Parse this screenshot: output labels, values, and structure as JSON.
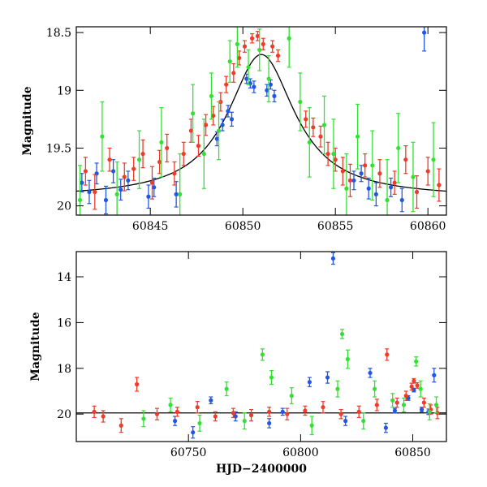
{
  "chart_data": [
    {
      "type": "scatter",
      "panel": "top",
      "title": "",
      "xlabel": "",
      "ylabel": "Magnitude",
      "xlim": [
        60841,
        60861
      ],
      "ylim": [
        20.08,
        18.45
      ],
      "y_inverted": true,
      "x_ticks": [
        60845,
        60850,
        60855,
        60860
      ],
      "x_tick_labels": [
        "60845",
        "60850",
        "60855",
        "60860"
      ],
      "y_ticks": [
        18.5,
        19,
        19.5,
        20
      ],
      "y_tick_labels": [
        "18.5",
        "19",
        "19.5",
        "20"
      ],
      "grid": false,
      "legend": "none",
      "model_curve": {
        "color": "#000000",
        "baseline": 19.93,
        "peak_mag": 18.69,
        "peak_time": 60851.0,
        "width_days": 2.2
      },
      "series": [
        {
          "color": "#2257e6",
          "points": [
            {
              "x": 60841.3,
              "y": 19.8,
              "err": 0.08
            },
            {
              "x": 60841.7,
              "y": 19.88,
              "err": 0.1
            },
            {
              "x": 60842.1,
              "y": 19.72,
              "err": 0.09
            },
            {
              "x": 60842.6,
              "y": 19.95,
              "err": 0.12
            },
            {
              "x": 60843.0,
              "y": 19.7,
              "err": 0.1
            },
            {
              "x": 60843.4,
              "y": 19.86,
              "err": 0.09
            },
            {
              "x": 60843.8,
              "y": 19.78,
              "err": 0.08
            },
            {
              "x": 60844.9,
              "y": 19.92,
              "err": 0.1
            },
            {
              "x": 60845.2,
              "y": 19.84,
              "err": 0.08
            },
            {
              "x": 60846.4,
              "y": 19.9,
              "err": 0.11
            },
            {
              "x": 60848.6,
              "y": 19.42,
              "err": 0.06
            },
            {
              "x": 60848.9,
              "y": 19.3,
              "err": 0.05
            },
            {
              "x": 60849.2,
              "y": 19.18,
              "err": 0.05
            },
            {
              "x": 60849.4,
              "y": 19.25,
              "err": 0.06
            },
            {
              "x": 60850.2,
              "y": 18.9,
              "err": 0.04
            },
            {
              "x": 60850.4,
              "y": 18.94,
              "err": 0.04
            },
            {
              "x": 60850.6,
              "y": 18.97,
              "err": 0.05
            },
            {
              "x": 60851.3,
              "y": 19.0,
              "err": 0.05
            },
            {
              "x": 60851.5,
              "y": 18.95,
              "err": 0.04
            },
            {
              "x": 60851.7,
              "y": 19.05,
              "err": 0.05
            },
            {
              "x": 60856.0,
              "y": 19.78,
              "err": 0.08
            },
            {
              "x": 60856.4,
              "y": 19.72,
              "err": 0.07
            },
            {
              "x": 60856.8,
              "y": 19.85,
              "err": 0.09
            },
            {
              "x": 60857.2,
              "y": 19.9,
              "err": 0.1
            },
            {
              "x": 60858.0,
              "y": 19.84,
              "err": 0.08
            },
            {
              "x": 60858.6,
              "y": 19.95,
              "err": 0.1
            },
            {
              "x": 60859.8,
              "y": 18.5,
              "err": 0.16
            }
          ]
        },
        {
          "color": "#ee3b2a",
          "points": [
            {
              "x": 60841.5,
              "y": 19.7,
              "err": 0.12
            },
            {
              "x": 60842.0,
              "y": 19.88,
              "err": 0.15
            },
            {
              "x": 60842.8,
              "y": 19.6,
              "err": 0.1
            },
            {
              "x": 60843.6,
              "y": 19.75,
              "err": 0.12
            },
            {
              "x": 60844.1,
              "y": 19.68,
              "err": 0.1
            },
            {
              "x": 60844.6,
              "y": 19.55,
              "err": 0.12
            },
            {
              "x": 60845.1,
              "y": 19.8,
              "err": 0.14
            },
            {
              "x": 60845.5,
              "y": 19.62,
              "err": 0.1
            },
            {
              "x": 60845.9,
              "y": 19.5,
              "err": 0.12
            },
            {
              "x": 60846.3,
              "y": 19.72,
              "err": 0.1
            },
            {
              "x": 60846.8,
              "y": 19.55,
              "err": 0.1
            },
            {
              "x": 60847.2,
              "y": 19.35,
              "err": 0.1
            },
            {
              "x": 60847.6,
              "y": 19.48,
              "err": 0.09
            },
            {
              "x": 60848.0,
              "y": 19.3,
              "err": 0.09
            },
            {
              "x": 60848.4,
              "y": 19.22,
              "err": 0.08
            },
            {
              "x": 60848.8,
              "y": 19.1,
              "err": 0.08
            },
            {
              "x": 60849.1,
              "y": 18.95,
              "err": 0.07
            },
            {
              "x": 60849.5,
              "y": 18.85,
              "err": 0.08
            },
            {
              "x": 60849.8,
              "y": 18.72,
              "err": 0.06
            },
            {
              "x": 60850.1,
              "y": 18.62,
              "err": 0.05
            },
            {
              "x": 60850.5,
              "y": 18.55,
              "err": 0.04
            },
            {
              "x": 60850.8,
              "y": 18.53,
              "err": 0.04
            },
            {
              "x": 60851.1,
              "y": 18.6,
              "err": 0.05
            },
            {
              "x": 60851.6,
              "y": 18.62,
              "err": 0.05
            },
            {
              "x": 60851.9,
              "y": 18.7,
              "err": 0.05
            },
            {
              "x": 60853.4,
              "y": 19.25,
              "err": 0.07
            },
            {
              "x": 60853.8,
              "y": 19.32,
              "err": 0.08
            },
            {
              "x": 60854.2,
              "y": 19.4,
              "err": 0.09
            },
            {
              "x": 60854.6,
              "y": 19.55,
              "err": 0.1
            },
            {
              "x": 60855.0,
              "y": 19.6,
              "err": 0.1
            },
            {
              "x": 60855.4,
              "y": 19.7,
              "err": 0.12
            },
            {
              "x": 60855.8,
              "y": 19.78,
              "err": 0.14
            },
            {
              "x": 60856.6,
              "y": 19.65,
              "err": 0.1
            },
            {
              "x": 60857.4,
              "y": 19.72,
              "err": 0.12
            },
            {
              "x": 60858.2,
              "y": 19.8,
              "err": 0.1
            },
            {
              "x": 60858.8,
              "y": 19.6,
              "err": 0.12
            },
            {
              "x": 60859.4,
              "y": 19.88,
              "err": 0.14
            },
            {
              "x": 60860.0,
              "y": 19.7,
              "err": 0.12
            },
            {
              "x": 60860.6,
              "y": 19.82,
              "err": 0.14
            }
          ]
        },
        {
          "color": "#33e033",
          "points": [
            {
              "x": 60841.2,
              "y": 19.95,
              "err": 0.3
            },
            {
              "x": 60842.4,
              "y": 19.4,
              "err": 0.3
            },
            {
              "x": 60843.2,
              "y": 19.9,
              "err": 0.28
            },
            {
              "x": 60844.4,
              "y": 19.6,
              "err": 0.25
            },
            {
              "x": 60845.6,
              "y": 19.45,
              "err": 0.3
            },
            {
              "x": 60846.6,
              "y": 19.9,
              "err": 0.35
            },
            {
              "x": 60847.3,
              "y": 19.2,
              "err": 0.25
            },
            {
              "x": 60847.9,
              "y": 19.55,
              "err": 0.3
            },
            {
              "x": 60848.3,
              "y": 19.05,
              "err": 0.2
            },
            {
              "x": 60848.7,
              "y": 19.35,
              "err": 0.25
            },
            {
              "x": 60849.3,
              "y": 18.75,
              "err": 0.18
            },
            {
              "x": 60849.7,
              "y": 18.6,
              "err": 0.2
            },
            {
              "x": 60850.3,
              "y": 18.8,
              "err": 0.15
            },
            {
              "x": 60850.9,
              "y": 18.65,
              "err": 0.18
            },
            {
              "x": 60851.4,
              "y": 18.9,
              "err": 0.2
            },
            {
              "x": 60852.5,
              "y": 18.55,
              "err": 0.25
            },
            {
              "x": 60853.1,
              "y": 19.1,
              "err": 0.25
            },
            {
              "x": 60853.6,
              "y": 19.45,
              "err": 0.3
            },
            {
              "x": 60854.4,
              "y": 19.3,
              "err": 0.25
            },
            {
              "x": 60854.9,
              "y": 19.55,
              "err": 0.3
            },
            {
              "x": 60855.6,
              "y": 19.85,
              "err": 0.3
            },
            {
              "x": 60856.2,
              "y": 19.4,
              "err": 0.28
            },
            {
              "x": 60857.0,
              "y": 19.65,
              "err": 0.3
            },
            {
              "x": 60857.8,
              "y": 19.95,
              "err": 0.35
            },
            {
              "x": 60858.4,
              "y": 19.5,
              "err": 0.3
            },
            {
              "x": 60859.2,
              "y": 19.75,
              "err": 0.3
            },
            {
              "x": 60860.3,
              "y": 19.6,
              "err": 0.32
            }
          ]
        }
      ]
    },
    {
      "type": "scatter",
      "panel": "bottom",
      "title": "",
      "xlabel": "HJD−2400000",
      "ylabel": "Magnitude",
      "xlim": [
        60700,
        60865
      ],
      "ylim": [
        21.2,
        12.9
      ],
      "y_inverted": true,
      "x_ticks": [
        60750,
        60800,
        60850
      ],
      "x_tick_labels": [
        "60750",
        "60800",
        "60850"
      ],
      "y_ticks": [
        14,
        16,
        18,
        20
      ],
      "y_tick_labels": [
        "14",
        "16",
        "18",
        "20"
      ],
      "grid": false,
      "legend": "none",
      "baseline_line": {
        "color": "#000000",
        "y": 19.95
      },
      "series": [
        {
          "color": "#2257e6",
          "points": [
            {
              "x": 60744.0,
              "y": 20.3,
              "err": 0.2
            },
            {
              "x": 60752.0,
              "y": 20.8,
              "err": 0.25
            },
            {
              "x": 60760.0,
              "y": 19.4,
              "err": 0.15
            },
            {
              "x": 60771.0,
              "y": 20.1,
              "err": 0.2
            },
            {
              "x": 60786.0,
              "y": 20.4,
              "err": 0.2
            },
            {
              "x": 60792.0,
              "y": 19.9,
              "err": 0.15
            },
            {
              "x": 60804.0,
              "y": 18.6,
              "err": 0.2
            },
            {
              "x": 60812.0,
              "y": 18.4,
              "err": 0.25
            },
            {
              "x": 60814.5,
              "y": 13.2,
              "err": 0.25
            },
            {
              "x": 60820.0,
              "y": 20.3,
              "err": 0.2
            },
            {
              "x": 60831.0,
              "y": 18.2,
              "err": 0.2
            },
            {
              "x": 60838.0,
              "y": 20.6,
              "err": 0.2
            },
            {
              "x": 60842.0,
              "y": 19.85,
              "err": 0.1
            },
            {
              "x": 60848.0,
              "y": 19.3,
              "err": 0.1
            },
            {
              "x": 60850.5,
              "y": 18.95,
              "err": 0.08
            },
            {
              "x": 60854.0,
              "y": 19.8,
              "err": 0.1
            },
            {
              "x": 60857.0,
              "y": 19.9,
              "err": 0.12
            },
            {
              "x": 60859.5,
              "y": 18.3,
              "err": 0.3
            }
          ]
        },
        {
          "color": "#ee3b2a",
          "points": [
            {
              "x": 60708.0,
              "y": 19.9,
              "err": 0.25
            },
            {
              "x": 60712.0,
              "y": 20.1,
              "err": 0.25
            },
            {
              "x": 60720.0,
              "y": 20.5,
              "err": 0.3
            },
            {
              "x": 60727.0,
              "y": 18.7,
              "err": 0.3
            },
            {
              "x": 60736.0,
              "y": 20.0,
              "err": 0.25
            },
            {
              "x": 60745.0,
              "y": 19.9,
              "err": 0.2
            },
            {
              "x": 60754.0,
              "y": 19.7,
              "err": 0.25
            },
            {
              "x": 60762.0,
              "y": 20.1,
              "err": 0.2
            },
            {
              "x": 60770.0,
              "y": 19.95,
              "err": 0.2
            },
            {
              "x": 60778.0,
              "y": 20.05,
              "err": 0.25
            },
            {
              "x": 60786.0,
              "y": 19.9,
              "err": 0.2
            },
            {
              "x": 60794.0,
              "y": 20.0,
              "err": 0.25
            },
            {
              "x": 60802.0,
              "y": 19.85,
              "err": 0.2
            },
            {
              "x": 60810.0,
              "y": 19.7,
              "err": 0.25
            },
            {
              "x": 60818.0,
              "y": 20.0,
              "err": 0.2
            },
            {
              "x": 60826.0,
              "y": 19.9,
              "err": 0.25
            },
            {
              "x": 60834.0,
              "y": 19.6,
              "err": 0.25
            },
            {
              "x": 60838.5,
              "y": 17.4,
              "err": 0.25
            },
            {
              "x": 60843.0,
              "y": 19.5,
              "err": 0.2
            },
            {
              "x": 60847.0,
              "y": 19.2,
              "err": 0.2
            },
            {
              "x": 60849.5,
              "y": 18.8,
              "err": 0.15
            },
            {
              "x": 60850.5,
              "y": 18.55,
              "err": 0.1
            },
            {
              "x": 60852.0,
              "y": 18.75,
              "err": 0.12
            },
            {
              "x": 60855.0,
              "y": 19.5,
              "err": 0.2
            },
            {
              "x": 60858.0,
              "y": 19.8,
              "err": 0.2
            },
            {
              "x": 60861.0,
              "y": 19.95,
              "err": 0.25
            }
          ]
        },
        {
          "color": "#33e033",
          "points": [
            {
              "x": 60730.0,
              "y": 20.2,
              "err": 0.35
            },
            {
              "x": 60742.0,
              "y": 19.6,
              "err": 0.3
            },
            {
              "x": 60755.0,
              "y": 20.4,
              "err": 0.35
            },
            {
              "x": 60767.0,
              "y": 18.9,
              "err": 0.3
            },
            {
              "x": 60775.0,
              "y": 20.3,
              "err": 0.35
            },
            {
              "x": 60783.0,
              "y": 17.4,
              "err": 0.25
            },
            {
              "x": 60787.0,
              "y": 18.4,
              "err": 0.3
            },
            {
              "x": 60796.0,
              "y": 19.2,
              "err": 0.35
            },
            {
              "x": 60805.0,
              "y": 20.5,
              "err": 0.4
            },
            {
              "x": 60816.5,
              "y": 18.9,
              "err": 0.35
            },
            {
              "x": 60818.5,
              "y": 16.5,
              "err": 0.2
            },
            {
              "x": 60821.0,
              "y": 17.6,
              "err": 0.4
            },
            {
              "x": 60828.0,
              "y": 20.3,
              "err": 0.35
            },
            {
              "x": 60833.0,
              "y": 18.9,
              "err": 0.35
            },
            {
              "x": 60841.0,
              "y": 19.4,
              "err": 0.3
            },
            {
              "x": 60846.0,
              "y": 19.6,
              "err": 0.3
            },
            {
              "x": 60851.5,
              "y": 17.7,
              "err": 0.2
            },
            {
              "x": 60853.5,
              "y": 18.9,
              "err": 0.35
            },
            {
              "x": 60857.5,
              "y": 19.9,
              "err": 0.35
            },
            {
              "x": 60860.5,
              "y": 19.6,
              "err": 0.35
            }
          ]
        }
      ]
    }
  ]
}
